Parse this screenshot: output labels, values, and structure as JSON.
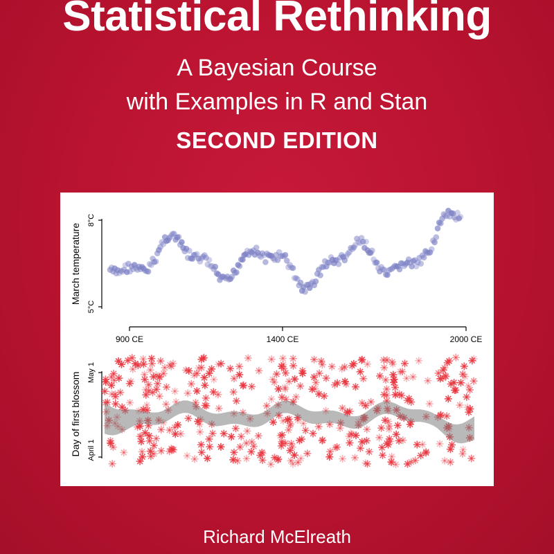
{
  "cover": {
    "title": "Statistical Rethinking",
    "subtitle_line1": "A Bayesian Course",
    "subtitle_line2": "with Examples in R and Stan",
    "edition": "SECOND EDITION",
    "author": "Richard McElreath",
    "background_color": "#b8132f",
    "text_color": "#ffffff"
  },
  "figure": {
    "top_panel": {
      "ylabel": "March temperature",
      "ytick_high": "8°C",
      "ytick_low": "5°C",
      "xticks": [
        "900 CE",
        "1400 CE",
        "2000 CE"
      ],
      "point_color": "#7b7fc4"
    },
    "bottom_panel": {
      "ylabel": "Day of first blossom",
      "ytick_high": "May 1",
      "ytick_low": "April 1",
      "point_color": "#e8323c",
      "band_color": "#808080"
    }
  }
}
